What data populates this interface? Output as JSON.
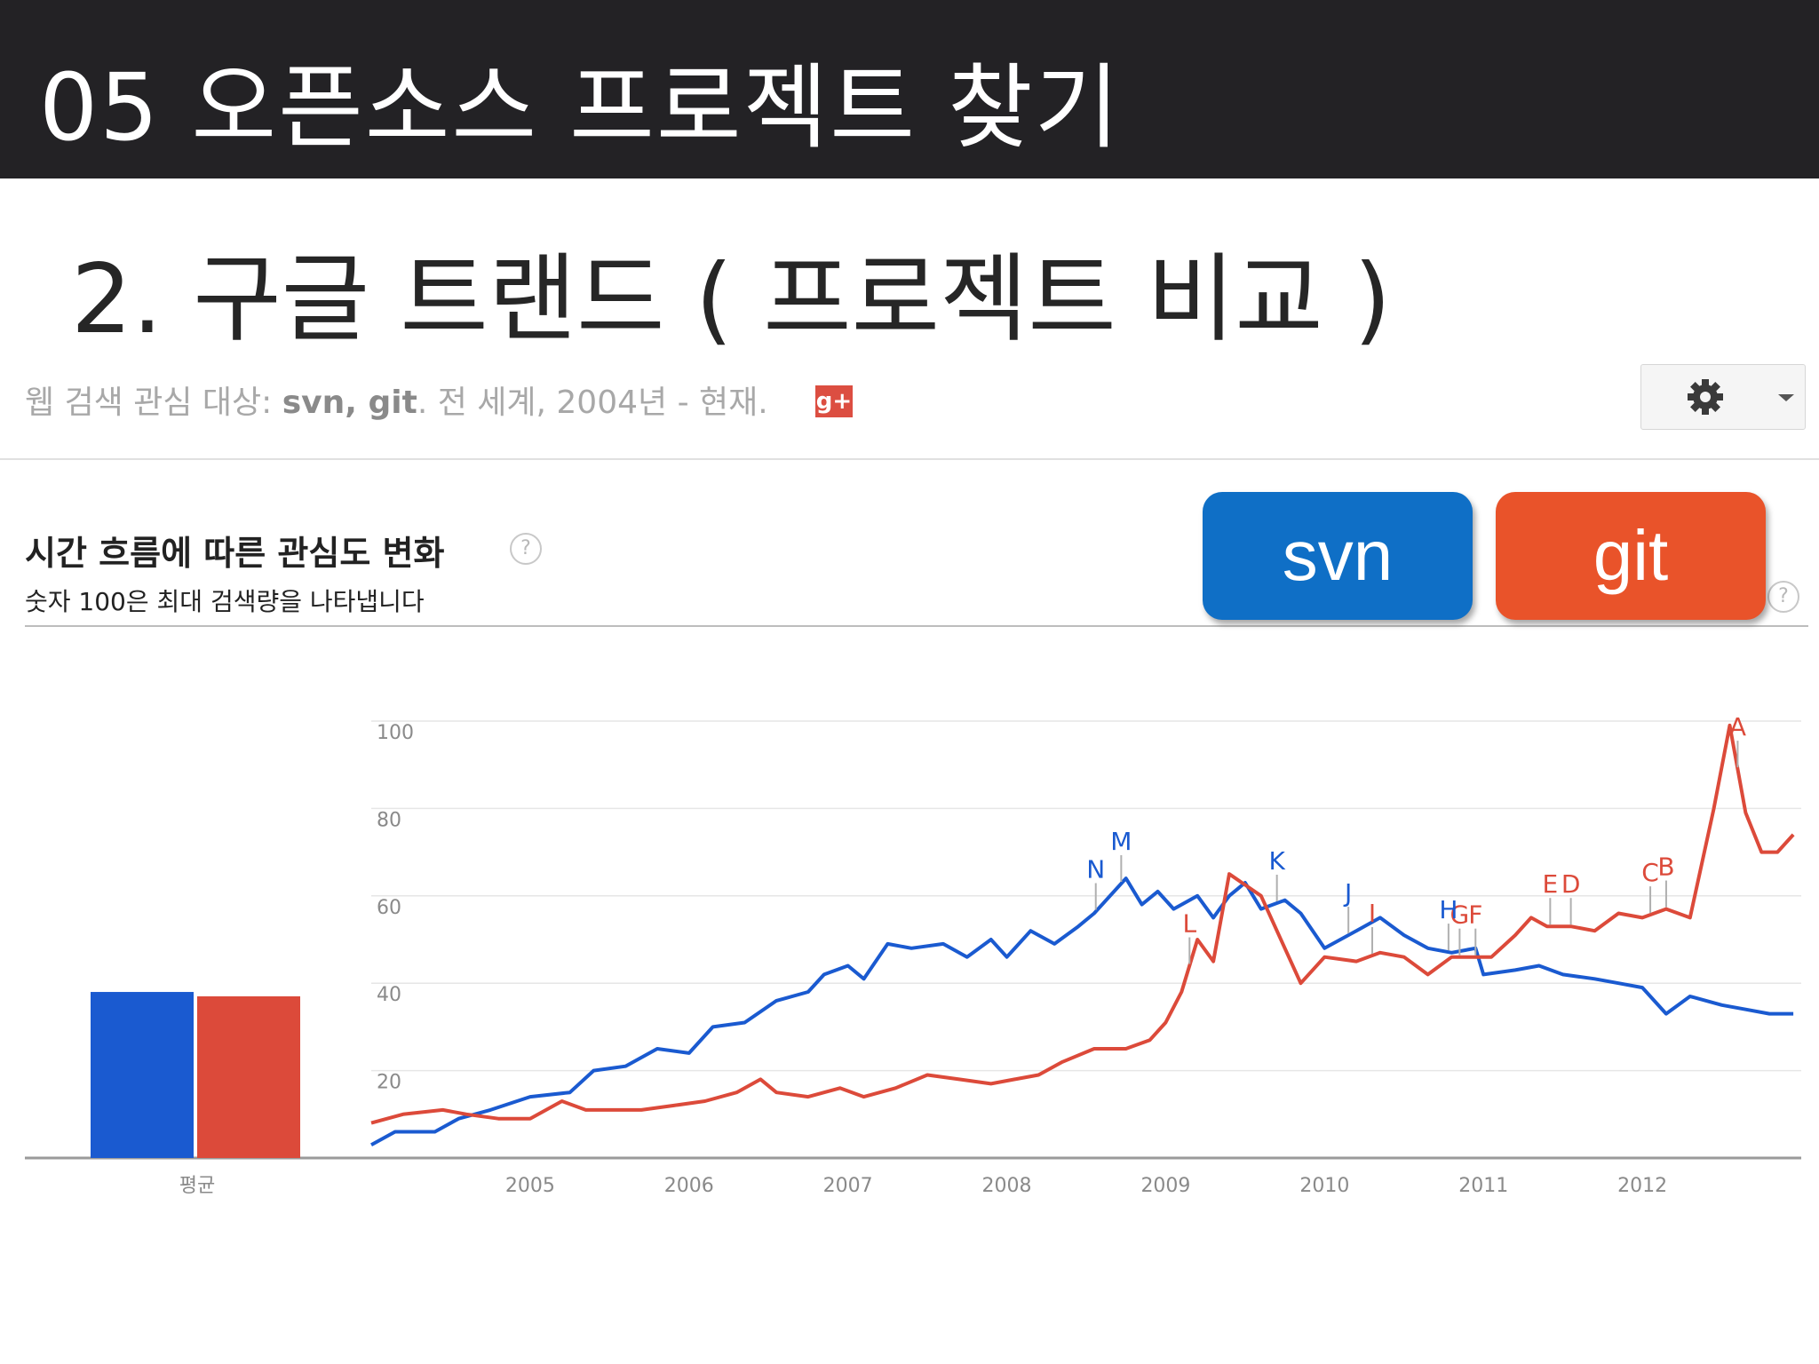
{
  "slide": {
    "title": "05 오픈소스 프로젝트 찾기",
    "subtitle": "2. 구글 트랜드 ( 프로젝트 비교 )"
  },
  "query": {
    "prefix": "웹 검색 관심 대상: ",
    "terms": "svn, git",
    "suffix": ". 전 세계, 2004년 - 현재.",
    "gplus_label": "g+"
  },
  "section": {
    "title": "시간 흐름에 따른 관심도 변화",
    "subtitle": "숫자 100은 최대 검색량을 나타냅니다",
    "help_glyph": "?"
  },
  "legend": [
    {
      "label": "svn",
      "color": "#0f6fc6"
    },
    {
      "label": "git",
      "color": "#e9532a"
    }
  ],
  "icons": {
    "settings": "gear-icon",
    "dropdown": "chevron-down-icon",
    "help": "help-icon"
  },
  "chart_data": {
    "type": "line",
    "ylim": [
      0,
      100
    ],
    "y_ticks": [
      100,
      80,
      60,
      40,
      20
    ],
    "x_ticks": [
      "2005",
      "2006",
      "2007",
      "2008",
      "2009",
      "2010",
      "2011",
      "2012"
    ],
    "x_range": [
      2004.0,
      2013.0
    ],
    "average": {
      "label": "평균",
      "values": [
        {
          "series": "svn",
          "value": 38
        },
        {
          "series": "git",
          "value": 37
        }
      ]
    },
    "series": [
      {
        "name": "svn",
        "color": "#1a5ad0",
        "points": [
          [
            2004.0,
            3
          ],
          [
            2004.15,
            6
          ],
          [
            2004.4,
            6
          ],
          [
            2004.55,
            9
          ],
          [
            2004.75,
            11
          ],
          [
            2005.0,
            14
          ],
          [
            2005.25,
            15
          ],
          [
            2005.4,
            20
          ],
          [
            2005.6,
            21
          ],
          [
            2005.8,
            25
          ],
          [
            2006.0,
            24
          ],
          [
            2006.15,
            30
          ],
          [
            2006.35,
            31
          ],
          [
            2006.55,
            36
          ],
          [
            2006.75,
            38
          ],
          [
            2006.85,
            42
          ],
          [
            2007.0,
            44
          ],
          [
            2007.1,
            41
          ],
          [
            2007.25,
            49
          ],
          [
            2007.4,
            48
          ],
          [
            2007.6,
            49
          ],
          [
            2007.75,
            46
          ],
          [
            2007.9,
            50
          ],
          [
            2008.0,
            46
          ],
          [
            2008.15,
            52
          ],
          [
            2008.3,
            49
          ],
          [
            2008.45,
            53
          ],
          [
            2008.55,
            56
          ],
          [
            2008.75,
            64
          ],
          [
            2008.85,
            58
          ],
          [
            2008.95,
            61
          ],
          [
            2009.05,
            57
          ],
          [
            2009.2,
            60
          ],
          [
            2009.3,
            55
          ],
          [
            2009.4,
            60
          ],
          [
            2009.5,
            63
          ],
          [
            2009.6,
            57
          ],
          [
            2009.75,
            59
          ],
          [
            2009.85,
            56
          ],
          [
            2010.0,
            48
          ],
          [
            2010.2,
            52
          ],
          [
            2010.35,
            55
          ],
          [
            2010.5,
            51
          ],
          [
            2010.65,
            48
          ],
          [
            2010.8,
            47
          ],
          [
            2010.95,
            48
          ],
          [
            2011.0,
            42
          ],
          [
            2011.2,
            43
          ],
          [
            2011.35,
            44
          ],
          [
            2011.5,
            42
          ],
          [
            2011.7,
            41
          ],
          [
            2011.85,
            40
          ],
          [
            2012.0,
            39
          ],
          [
            2012.15,
            33
          ],
          [
            2012.3,
            37
          ],
          [
            2012.5,
            35
          ],
          [
            2012.65,
            34
          ],
          [
            2012.8,
            33
          ],
          [
            2012.95,
            33
          ]
        ]
      },
      {
        "name": "git",
        "color": "#dc4a3a",
        "points": [
          [
            2004.0,
            8
          ],
          [
            2004.2,
            10
          ],
          [
            2004.45,
            11
          ],
          [
            2004.6,
            10
          ],
          [
            2004.8,
            9
          ],
          [
            2005.0,
            9
          ],
          [
            2005.2,
            13
          ],
          [
            2005.35,
            11
          ],
          [
            2005.5,
            11
          ],
          [
            2005.7,
            11
          ],
          [
            2005.9,
            12
          ],
          [
            2006.1,
            13
          ],
          [
            2006.3,
            15
          ],
          [
            2006.45,
            18
          ],
          [
            2006.55,
            15
          ],
          [
            2006.75,
            14
          ],
          [
            2006.95,
            16
          ],
          [
            2007.1,
            14
          ],
          [
            2007.3,
            16
          ],
          [
            2007.5,
            19
          ],
          [
            2007.7,
            18
          ],
          [
            2007.9,
            17
          ],
          [
            2008.05,
            18
          ],
          [
            2008.2,
            19
          ],
          [
            2008.35,
            22
          ],
          [
            2008.55,
            25
          ],
          [
            2008.75,
            25
          ],
          [
            2008.9,
            27
          ],
          [
            2009.0,
            31
          ],
          [
            2009.1,
            38
          ],
          [
            2009.2,
            50
          ],
          [
            2009.3,
            45
          ],
          [
            2009.4,
            65
          ],
          [
            2009.6,
            60
          ],
          [
            2009.75,
            48
          ],
          [
            2009.85,
            40
          ],
          [
            2010.0,
            46
          ],
          [
            2010.2,
            45
          ],
          [
            2010.35,
            47
          ],
          [
            2010.5,
            46
          ],
          [
            2010.65,
            42
          ],
          [
            2010.8,
            46
          ],
          [
            2010.95,
            46
          ],
          [
            2011.05,
            46
          ],
          [
            2011.2,
            51
          ],
          [
            2011.3,
            55
          ],
          [
            2011.4,
            53
          ],
          [
            2011.55,
            53
          ],
          [
            2011.7,
            52
          ],
          [
            2011.85,
            56
          ],
          [
            2012.0,
            55
          ],
          [
            2012.15,
            57
          ],
          [
            2012.3,
            55
          ],
          [
            2012.45,
            80
          ],
          [
            2012.55,
            99
          ],
          [
            2012.65,
            79
          ],
          [
            2012.75,
            70
          ],
          [
            2012.85,
            70
          ],
          [
            2012.95,
            74
          ]
        ]
      }
    ],
    "annotations": [
      {
        "label": "A",
        "x": 2012.6,
        "series": "git"
      },
      {
        "label": "B",
        "x": 2012.15,
        "series": "git"
      },
      {
        "label": "C",
        "x": 2012.05,
        "series": "git"
      },
      {
        "label": "D",
        "x": 2011.55,
        "series": "git"
      },
      {
        "label": "E",
        "x": 2011.42,
        "series": "git"
      },
      {
        "label": "F",
        "x": 2010.95,
        "series": "git"
      },
      {
        "label": "G",
        "x": 2010.85,
        "series": "git"
      },
      {
        "label": "H",
        "x": 2010.78,
        "series": "svn"
      },
      {
        "label": "I",
        "x": 2010.3,
        "series": "git"
      },
      {
        "label": "J",
        "x": 2010.15,
        "series": "svn"
      },
      {
        "label": "K",
        "x": 2009.7,
        "series": "svn"
      },
      {
        "label": "L",
        "x": 2009.15,
        "series": "git"
      },
      {
        "label": "M",
        "x": 2008.72,
        "series": "svn"
      },
      {
        "label": "N",
        "x": 2008.56,
        "series": "svn"
      }
    ]
  }
}
